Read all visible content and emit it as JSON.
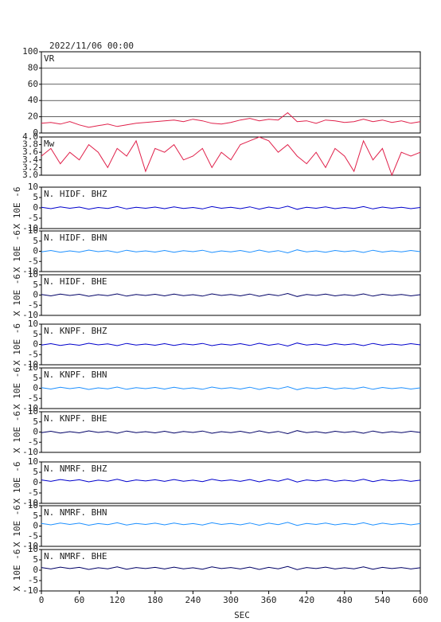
{
  "chart_data": [
    {
      "type": "line",
      "title": "2022/11/06 00:00",
      "grid": true,
      "x": [
        0,
        15,
        30,
        45,
        60,
        75,
        90,
        105,
        120,
        135,
        150,
        165,
        180,
        195,
        210,
        225,
        240,
        255,
        270,
        285,
        300,
        315,
        330,
        345,
        360,
        375,
        390,
        405,
        420,
        435,
        450,
        465,
        480,
        495,
        510,
        525,
        540,
        555,
        570,
        585,
        600
      ],
      "xlim": [
        0,
        600
      ],
      "ylim": [
        0,
        100
      ],
      "yticks": [
        0,
        20,
        40,
        60,
        80,
        100
      ],
      "series": [
        {
          "name": "VR",
          "color": "#e0204a",
          "values": [
            12,
            13,
            11,
            14,
            10,
            7,
            9,
            11,
            8,
            10,
            12,
            13,
            14,
            15,
            16,
            14,
            17,
            15,
            12,
            11,
            13,
            16,
            18,
            15,
            17,
            16,
            25,
            14,
            15,
            12,
            16,
            15,
            13,
            14,
            17,
            14,
            16,
            13,
            15,
            12,
            14
          ]
        }
      ]
    },
    {
      "type": "line",
      "x": [
        0,
        15,
        30,
        45,
        60,
        75,
        90,
        105,
        120,
        135,
        150,
        165,
        180,
        195,
        210,
        225,
        240,
        255,
        270,
        285,
        300,
        315,
        330,
        345,
        360,
        375,
        390,
        405,
        420,
        435,
        450,
        465,
        480,
        495,
        510,
        525,
        540,
        555,
        570,
        585,
        600
      ],
      "xlim": [
        0,
        600
      ],
      "ylim": [
        3,
        4
      ],
      "yticks": [
        {
          "value": 3,
          "label": "3.0"
        },
        3.2,
        3.4,
        3.6,
        3.8,
        {
          "value": 4,
          "label": "4.0"
        }
      ],
      "series": [
        {
          "name": "Mw",
          "color": "#e0204a",
          "values": [
            3.5,
            3.7,
            3.3,
            3.6,
            3.4,
            3.8,
            3.6,
            3.2,
            3.7,
            3.5,
            3.9,
            3.1,
            3.7,
            3.6,
            3.8,
            3.4,
            3.5,
            3.7,
            3.2,
            3.6,
            3.4,
            3.8,
            3.9,
            4.0,
            3.9,
            3.6,
            3.8,
            3.5,
            3.3,
            3.6,
            3.2,
            3.7,
            3.5,
            3.1,
            3.9,
            3.4,
            3.7,
            3.0,
            3.6,
            3.5,
            3.6
          ]
        }
      ]
    },
    {
      "type": "line",
      "ylabel": "X 10E -6",
      "x": [
        0,
        15,
        30,
        45,
        60,
        75,
        90,
        105,
        120,
        135,
        150,
        165,
        180,
        195,
        210,
        225,
        240,
        255,
        270,
        285,
        300,
        315,
        330,
        345,
        360,
        375,
        390,
        405,
        420,
        435,
        450,
        465,
        480,
        495,
        510,
        525,
        540,
        555,
        570,
        585,
        600
      ],
      "xlim": [
        0,
        600
      ],
      "ylim": [
        -10,
        10
      ],
      "yticks": [
        -10,
        -5,
        0,
        5,
        10
      ],
      "series": [
        {
          "name": "N. HIDF. BHZ",
          "color": "#0000cc",
          "values": [
            0.3,
            -0.4,
            0.5,
            -0.2,
            0.4,
            -0.6,
            0.2,
            -0.3,
            0.6,
            -0.5,
            0.3,
            -0.2,
            0.4,
            -0.4,
            0.5,
            -0.3,
            0.2,
            -0.5,
            0.6,
            -0.2,
            0.3,
            -0.4,
            0.5,
            -0.6,
            0.4,
            -0.3,
            0.8,
            -0.7,
            0.3,
            -0.2,
            0.5,
            -0.4,
            0.2,
            -0.3,
            0.6,
            -0.5,
            0.4,
            -0.2,
            0.3,
            -0.4,
            0.2
          ]
        }
      ]
    },
    {
      "type": "line",
      "ylabel": "X 10E -6",
      "x": [
        0,
        15,
        30,
        45,
        60,
        75,
        90,
        105,
        120,
        135,
        150,
        165,
        180,
        195,
        210,
        225,
        240,
        255,
        270,
        285,
        300,
        315,
        330,
        345,
        360,
        375,
        390,
        405,
        420,
        435,
        450,
        465,
        480,
        495,
        510,
        525,
        540,
        555,
        570,
        585,
        600
      ],
      "xlim": [
        0,
        600
      ],
      "ylim": [
        -10,
        10
      ],
      "yticks": [
        -10,
        -5,
        0,
        5,
        10
      ],
      "series": [
        {
          "name": "N. HIDF. BHN",
          "color": "#1e90ff",
          "values": [
            -0.3,
            0.4,
            -0.5,
            0.2,
            -0.4,
            0.6,
            -0.2,
            0.3,
            -0.6,
            0.5,
            -0.3,
            0.2,
            -0.4,
            0.4,
            -0.5,
            0.3,
            -0.2,
            0.5,
            -0.6,
            0.2,
            -0.3,
            0.4,
            -0.5,
            0.6,
            -0.4,
            0.3,
            -0.8,
            0.7,
            -0.3,
            0.2,
            -0.5,
            0.4,
            -0.2,
            0.3,
            -0.6,
            0.5,
            -0.4,
            0.2,
            -0.3,
            0.4,
            -0.2
          ]
        }
      ]
    },
    {
      "type": "line",
      "ylabel": "X 10E -6",
      "x": [
        0,
        15,
        30,
        45,
        60,
        75,
        90,
        105,
        120,
        135,
        150,
        165,
        180,
        195,
        210,
        225,
        240,
        255,
        270,
        285,
        300,
        315,
        330,
        345,
        360,
        375,
        390,
        405,
        420,
        435,
        450,
        465,
        480,
        495,
        510,
        525,
        540,
        555,
        570,
        585,
        600
      ],
      "xlim": [
        0,
        600
      ],
      "ylim": [
        -10,
        10
      ],
      "yticks": [
        -10,
        -5,
        0,
        5,
        10
      ],
      "series": [
        {
          "name": "N. HIDF. BHE",
          "color": "#000066",
          "values": [
            0.3,
            -0.4,
            0.5,
            -0.2,
            0.4,
            -0.6,
            0.2,
            -0.3,
            0.6,
            -0.5,
            0.3,
            -0.2,
            0.4,
            -0.4,
            0.5,
            -0.3,
            0.2,
            -0.5,
            0.6,
            -0.2,
            0.3,
            -0.4,
            0.5,
            -0.6,
            0.4,
            -0.3,
            0.8,
            -0.7,
            0.3,
            -0.2,
            0.5,
            -0.4,
            0.2,
            -0.3,
            0.6,
            -0.5,
            0.4,
            -0.2,
            0.3,
            -0.4,
            0.2
          ]
        }
      ]
    },
    {
      "type": "line",
      "ylabel": "X 10E -6",
      "x": [
        0,
        15,
        30,
        45,
        60,
        75,
        90,
        105,
        120,
        135,
        150,
        165,
        180,
        195,
        210,
        225,
        240,
        255,
        270,
        285,
        300,
        315,
        330,
        345,
        360,
        375,
        390,
        405,
        420,
        435,
        450,
        465,
        480,
        495,
        510,
        525,
        540,
        555,
        570,
        585,
        600
      ],
      "xlim": [
        0,
        600
      ],
      "ylim": [
        -10,
        10
      ],
      "yticks": [
        -10,
        -5,
        0,
        5,
        10
      ],
      "series": [
        {
          "name": "N. KNPF. BHZ",
          "color": "#0000cc",
          "values": [
            -0.3,
            0.4,
            -0.5,
            0.2,
            -0.4,
            0.6,
            -0.2,
            0.3,
            -0.6,
            0.5,
            -0.3,
            0.2,
            -0.4,
            0.4,
            -0.5,
            0.3,
            -0.2,
            0.5,
            -0.6,
            0.2,
            -0.3,
            0.4,
            -0.5,
            0.6,
            -0.4,
            0.3,
            -0.8,
            0.7,
            -0.3,
            0.2,
            -0.5,
            0.4,
            -0.2,
            0.3,
            -0.6,
            0.5,
            -0.4,
            0.2,
            -0.3,
            0.4,
            -0.2
          ]
        }
      ]
    },
    {
      "type": "line",
      "ylabel": "X 10E -6",
      "x": [
        0,
        15,
        30,
        45,
        60,
        75,
        90,
        105,
        120,
        135,
        150,
        165,
        180,
        195,
        210,
        225,
        240,
        255,
        270,
        285,
        300,
        315,
        330,
        345,
        360,
        375,
        390,
        405,
        420,
        435,
        450,
        465,
        480,
        495,
        510,
        525,
        540,
        555,
        570,
        585,
        600
      ],
      "xlim": [
        0,
        600
      ],
      "ylim": [
        -10,
        10
      ],
      "yticks": [
        -10,
        -5,
        0,
        5,
        10
      ],
      "series": [
        {
          "name": "N. KNPF. BHN",
          "color": "#1e90ff",
          "values": [
            0.3,
            -0.4,
            0.5,
            -0.2,
            0.4,
            -0.6,
            0.2,
            -0.3,
            0.6,
            -0.5,
            0.3,
            -0.2,
            0.4,
            -0.4,
            0.5,
            -0.3,
            0.2,
            -0.5,
            0.6,
            -0.2,
            0.3,
            -0.4,
            0.5,
            -0.6,
            0.4,
            -0.3,
            0.8,
            -0.7,
            0.3,
            -0.2,
            0.5,
            -0.4,
            0.2,
            -0.3,
            0.6,
            -0.5,
            0.4,
            -0.2,
            0.3,
            -0.4,
            0.2
          ]
        }
      ]
    },
    {
      "type": "line",
      "ylabel": "X 10E -6",
      "x": [
        0,
        15,
        30,
        45,
        60,
        75,
        90,
        105,
        120,
        135,
        150,
        165,
        180,
        195,
        210,
        225,
        240,
        255,
        270,
        285,
        300,
        315,
        330,
        345,
        360,
        375,
        390,
        405,
        420,
        435,
        450,
        465,
        480,
        495,
        510,
        525,
        540,
        555,
        570,
        585,
        600
      ],
      "xlim": [
        0,
        600
      ],
      "ylim": [
        -10,
        10
      ],
      "yticks": [
        -10,
        -5,
        0,
        5,
        10
      ],
      "series": [
        {
          "name": "N. KNPF. BHE",
          "color": "#000066",
          "values": [
            -0.3,
            0.4,
            -0.5,
            0.2,
            -0.4,
            0.6,
            -0.2,
            0.3,
            -0.6,
            0.5,
            -0.3,
            0.2,
            -0.4,
            0.4,
            -0.5,
            0.3,
            -0.2,
            0.5,
            -0.6,
            0.2,
            -0.3,
            0.4,
            -0.5,
            0.6,
            -0.4,
            0.3,
            -0.8,
            0.7,
            -0.3,
            0.2,
            -0.5,
            0.4,
            -0.2,
            0.3,
            -0.6,
            0.5,
            -0.4,
            0.2,
            -0.3,
            0.4,
            -0.2
          ]
        }
      ]
    },
    {
      "type": "line",
      "ylabel": "X 10E -6",
      "x": [
        0,
        15,
        30,
        45,
        60,
        75,
        90,
        105,
        120,
        135,
        150,
        165,
        180,
        195,
        210,
        225,
        240,
        255,
        270,
        285,
        300,
        315,
        330,
        345,
        360,
        375,
        390,
        405,
        420,
        435,
        450,
        465,
        480,
        495,
        510,
        525,
        540,
        555,
        570,
        585,
        600
      ],
      "xlim": [
        0,
        600
      ],
      "ylim": [
        -10,
        10
      ],
      "yticks": [
        -10,
        -5,
        0,
        5,
        10
      ],
      "series": [
        {
          "name": "N. NMRF. BHZ",
          "color": "#0000cc",
          "values": [
            1.3,
            0.6,
            1.5,
            0.8,
            1.4,
            0.4,
            1.2,
            0.7,
            1.6,
            0.5,
            1.3,
            0.8,
            1.4,
            0.6,
            1.5,
            0.7,
            1.2,
            0.5,
            1.6,
            0.8,
            1.3,
            0.6,
            1.5,
            0.4,
            1.4,
            0.7,
            1.8,
            0.3,
            1.3,
            0.8,
            1.5,
            0.6,
            1.2,
            0.7,
            1.6,
            0.5,
            1.4,
            0.8,
            1.3,
            0.6,
            1.2
          ]
        }
      ]
    },
    {
      "type": "line",
      "ylabel": "X 10E -6",
      "x": [
        0,
        15,
        30,
        45,
        60,
        75,
        90,
        105,
        120,
        135,
        150,
        165,
        180,
        195,
        210,
        225,
        240,
        255,
        270,
        285,
        300,
        315,
        330,
        345,
        360,
        375,
        390,
        405,
        420,
        435,
        450,
        465,
        480,
        495,
        510,
        525,
        540,
        555,
        570,
        585,
        600
      ],
      "xlim": [
        0,
        600
      ],
      "ylim": [
        -10,
        10
      ],
      "yticks": [
        -10,
        -5,
        0,
        5,
        10
      ],
      "series": [
        {
          "name": "N. NMRF. BHN",
          "color": "#1e90ff",
          "values": [
            1.3,
            0.6,
            1.5,
            0.8,
            1.4,
            0.4,
            1.2,
            0.7,
            1.6,
            0.5,
            1.3,
            0.8,
            1.4,
            0.6,
            1.5,
            0.7,
            1.2,
            0.5,
            1.6,
            0.8,
            1.3,
            0.6,
            1.5,
            0.4,
            1.4,
            0.7,
            1.8,
            0.3,
            1.3,
            0.8,
            1.5,
            0.6,
            1.2,
            0.7,
            1.6,
            0.5,
            1.4,
            0.8,
            1.3,
            0.6,
            1.2
          ]
        }
      ]
    },
    {
      "type": "line",
      "ylabel": "X 10E -6",
      "xlabel": "SEC",
      "x": [
        0,
        15,
        30,
        45,
        60,
        75,
        90,
        105,
        120,
        135,
        150,
        165,
        180,
        195,
        210,
        225,
        240,
        255,
        270,
        285,
        300,
        315,
        330,
        345,
        360,
        375,
        390,
        405,
        420,
        435,
        450,
        465,
        480,
        495,
        510,
        525,
        540,
        555,
        570,
        585,
        600
      ],
      "xlim": [
        0,
        600
      ],
      "xticks": [
        0,
        60,
        120,
        180,
        240,
        300,
        360,
        420,
        480,
        540,
        600
      ],
      "ylim": [
        -10,
        10
      ],
      "yticks": [
        -10,
        -5,
        0,
        5,
        10
      ],
      "series": [
        {
          "name": "N. NMRF. BHE",
          "color": "#000066",
          "values": [
            1.3,
            0.6,
            1.5,
            0.8,
            1.4,
            0.4,
            1.2,
            0.7,
            1.6,
            0.5,
            1.3,
            0.8,
            1.4,
            0.6,
            1.5,
            0.7,
            1.2,
            0.5,
            1.6,
            0.8,
            1.3,
            0.6,
            1.5,
            0.4,
            1.4,
            0.7,
            1.8,
            0.3,
            1.3,
            0.8,
            1.5,
            0.6,
            1.2,
            0.7,
            1.6,
            0.5,
            1.4,
            0.8,
            1.3,
            0.6,
            1.2
          ]
        }
      ]
    }
  ]
}
